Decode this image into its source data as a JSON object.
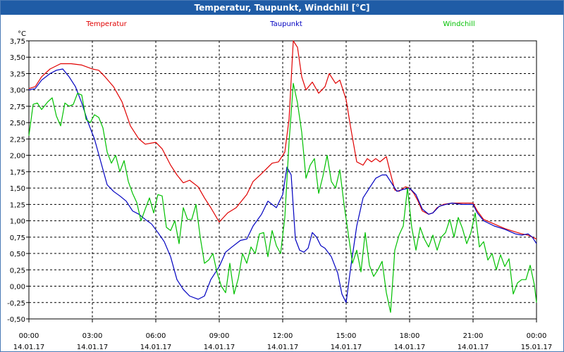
{
  "window": {
    "title": "Temperatur, Taupunkt, Windchill [°C]"
  },
  "chart_data": {
    "type": "line",
    "title": "Temperatur, Taupunkt, Windchill [°C]",
    "ylabel": "°C",
    "ylim": [
      -0.5,
      3.75
    ],
    "xlim": [
      0,
      24
    ],
    "grid": true,
    "legend_position": "top",
    "y_ticks": [
      "3,75",
      "3,50",
      "3,25",
      "3,00",
      "2,75",
      "2,50",
      "2,25",
      "2,00",
      "1,75",
      "1,50",
      "1,25",
      "1,00",
      "0,75",
      "0,50",
      "0,25",
      "0,00",
      "-0,25",
      "-0,50"
    ],
    "x_ticks": [
      {
        "time": "00:00",
        "date": "14.01.17"
      },
      {
        "time": "03:00",
        "date": "14.01.17"
      },
      {
        "time": "06:00",
        "date": "14.01.17"
      },
      {
        "time": "09:00",
        "date": "14.01.17"
      },
      {
        "time": "12:00",
        "date": "14.01.17"
      },
      {
        "time": "15:00",
        "date": "14.01.17"
      },
      {
        "time": "18:00",
        "date": "14.01.17"
      },
      {
        "time": "21:00",
        "date": "14.01.17"
      },
      {
        "time": "00:00",
        "date": "15.01.17"
      }
    ],
    "series": [
      {
        "name": "Temperatur",
        "color": "#e00000",
        "points": [
          [
            0,
            3.02
          ],
          [
            0.3,
            3.05
          ],
          [
            0.6,
            3.2
          ],
          [
            1.0,
            3.32
          ],
          [
            1.5,
            3.4
          ],
          [
            2.0,
            3.4
          ],
          [
            2.5,
            3.38
          ],
          [
            3.0,
            3.32
          ],
          [
            3.3,
            3.3
          ],
          [
            3.6,
            3.2
          ],
          [
            4.0,
            3.05
          ],
          [
            4.4,
            2.82
          ],
          [
            4.8,
            2.45
          ],
          [
            5.2,
            2.25
          ],
          [
            5.5,
            2.17
          ],
          [
            6.0,
            2.2
          ],
          [
            6.3,
            2.1
          ],
          [
            6.7,
            1.85
          ],
          [
            7.0,
            1.7
          ],
          [
            7.3,
            1.58
          ],
          [
            7.6,
            1.62
          ],
          [
            8.0,
            1.52
          ],
          [
            8.3,
            1.35
          ],
          [
            8.6,
            1.2
          ],
          [
            9.0,
            0.98
          ],
          [
            9.4,
            1.12
          ],
          [
            9.8,
            1.2
          ],
          [
            10.3,
            1.4
          ],
          [
            10.6,
            1.6
          ],
          [
            11.0,
            1.72
          ],
          [
            11.5,
            1.88
          ],
          [
            11.8,
            1.9
          ],
          [
            12.1,
            2.05
          ],
          [
            12.3,
            2.55
          ],
          [
            12.5,
            3.75
          ],
          [
            12.7,
            3.65
          ],
          [
            12.9,
            3.2
          ],
          [
            13.1,
            3.0
          ],
          [
            13.4,
            3.12
          ],
          [
            13.7,
            2.95
          ],
          [
            14.0,
            3.05
          ],
          [
            14.2,
            3.25
          ],
          [
            14.5,
            3.1
          ],
          [
            14.7,
            3.15
          ],
          [
            15.0,
            2.85
          ],
          [
            15.2,
            2.45
          ],
          [
            15.5,
            1.9
          ],
          [
            15.8,
            1.85
          ],
          [
            16.0,
            1.95
          ],
          [
            16.2,
            1.9
          ],
          [
            16.4,
            1.95
          ],
          [
            16.6,
            1.9
          ],
          [
            16.9,
            1.98
          ],
          [
            17.1,
            1.72
          ],
          [
            17.3,
            1.47
          ],
          [
            17.5,
            1.45
          ],
          [
            17.8,
            1.52
          ],
          [
            18.0,
            1.5
          ],
          [
            18.2,
            1.42
          ],
          [
            18.4,
            1.3
          ],
          [
            18.6,
            1.15
          ],
          [
            18.9,
            1.1
          ],
          [
            19.1,
            1.12
          ],
          [
            19.3,
            1.2
          ],
          [
            19.6,
            1.25
          ],
          [
            20.0,
            1.27
          ],
          [
            20.5,
            1.27
          ],
          [
            21.0,
            1.27
          ],
          [
            21.2,
            1.15
          ],
          [
            21.5,
            1.02
          ],
          [
            22.0,
            0.95
          ],
          [
            22.5,
            0.88
          ],
          [
            23.0,
            0.83
          ],
          [
            23.3,
            0.8
          ],
          [
            23.6,
            0.78
          ],
          [
            23.8,
            0.75
          ],
          [
            24.0,
            0.72
          ]
        ]
      },
      {
        "name": "Taupunkt",
        "color": "#0000c0",
        "points": [
          [
            0,
            3.0
          ],
          [
            0.3,
            3.02
          ],
          [
            0.6,
            3.15
          ],
          [
            1.0,
            3.25
          ],
          [
            1.3,
            3.3
          ],
          [
            1.6,
            3.32
          ],
          [
            1.9,
            3.2
          ],
          [
            2.2,
            3.05
          ],
          [
            2.5,
            2.8
          ],
          [
            2.8,
            2.5
          ],
          [
            3.1,
            2.25
          ],
          [
            3.4,
            1.9
          ],
          [
            3.7,
            1.55
          ],
          [
            4.0,
            1.45
          ],
          [
            4.3,
            1.38
          ],
          [
            4.6,
            1.3
          ],
          [
            4.9,
            1.15
          ],
          [
            5.2,
            1.1
          ],
          [
            5.5,
            1.02
          ],
          [
            5.8,
            0.95
          ],
          [
            6.1,
            0.82
          ],
          [
            6.4,
            0.68
          ],
          [
            6.7,
            0.45
          ],
          [
            7.0,
            0.1
          ],
          [
            7.3,
            -0.05
          ],
          [
            7.6,
            -0.15
          ],
          [
            8.0,
            -0.2
          ],
          [
            8.3,
            -0.15
          ],
          [
            8.6,
            0.1
          ],
          [
            9.0,
            0.3
          ],
          [
            9.3,
            0.52
          ],
          [
            9.6,
            0.6
          ],
          [
            10.0,
            0.7
          ],
          [
            10.3,
            0.72
          ],
          [
            10.6,
            0.92
          ],
          [
            11.0,
            1.1
          ],
          [
            11.3,
            1.3
          ],
          [
            11.7,
            1.2
          ],
          [
            12.0,
            1.4
          ],
          [
            12.2,
            1.82
          ],
          [
            12.4,
            1.7
          ],
          [
            12.6,
            0.72
          ],
          [
            12.8,
            0.55
          ],
          [
            13.0,
            0.52
          ],
          [
            13.2,
            0.58
          ],
          [
            13.4,
            0.82
          ],
          [
            13.6,
            0.75
          ],
          [
            13.8,
            0.62
          ],
          [
            14.0,
            0.58
          ],
          [
            14.3,
            0.45
          ],
          [
            14.6,
            0.2
          ],
          [
            14.8,
            -0.12
          ],
          [
            15.0,
            -0.25
          ],
          [
            15.2,
            0.25
          ],
          [
            15.5,
            0.92
          ],
          [
            15.8,
            1.35
          ],
          [
            16.1,
            1.5
          ],
          [
            16.4,
            1.65
          ],
          [
            16.7,
            1.7
          ],
          [
            16.9,
            1.7
          ],
          [
            17.2,
            1.55
          ],
          [
            17.4,
            1.45
          ],
          [
            17.7,
            1.48
          ],
          [
            18.0,
            1.5
          ],
          [
            18.3,
            1.4
          ],
          [
            18.6,
            1.18
          ],
          [
            18.9,
            1.1
          ],
          [
            19.1,
            1.12
          ],
          [
            19.4,
            1.22
          ],
          [
            19.7,
            1.25
          ],
          [
            20.0,
            1.27
          ],
          [
            20.5,
            1.25
          ],
          [
            21.0,
            1.25
          ],
          [
            21.2,
            1.12
          ],
          [
            21.5,
            1.0
          ],
          [
            22.0,
            0.92
          ],
          [
            22.5,
            0.87
          ],
          [
            23.0,
            0.8
          ],
          [
            23.3,
            0.78
          ],
          [
            23.6,
            0.8
          ],
          [
            23.8,
            0.75
          ],
          [
            24.0,
            0.65
          ]
        ]
      },
      {
        "name": "Windchill",
        "color": "#00c000",
        "points": [
          [
            0,
            2.3
          ],
          [
            0.2,
            2.78
          ],
          [
            0.4,
            2.8
          ],
          [
            0.6,
            2.7
          ],
          [
            0.9,
            2.82
          ],
          [
            1.1,
            2.88
          ],
          [
            1.3,
            2.6
          ],
          [
            1.5,
            2.45
          ],
          [
            1.7,
            2.8
          ],
          [
            1.9,
            2.75
          ],
          [
            2.1,
            2.78
          ],
          [
            2.3,
            2.95
          ],
          [
            2.5,
            2.92
          ],
          [
            2.7,
            2.55
          ],
          [
            2.9,
            2.5
          ],
          [
            3.1,
            2.62
          ],
          [
            3.3,
            2.58
          ],
          [
            3.5,
            2.42
          ],
          [
            3.7,
            2.05
          ],
          [
            3.9,
            1.88
          ],
          [
            4.1,
            2.0
          ],
          [
            4.3,
            1.75
          ],
          [
            4.5,
            1.92
          ],
          [
            4.7,
            1.6
          ],
          [
            4.9,
            1.42
          ],
          [
            5.1,
            1.28
          ],
          [
            5.3,
            1.0
          ],
          [
            5.5,
            1.18
          ],
          [
            5.7,
            1.35
          ],
          [
            5.9,
            1.12
          ],
          [
            6.1,
            1.4
          ],
          [
            6.3,
            1.38
          ],
          [
            6.5,
            0.9
          ],
          [
            6.7,
            0.85
          ],
          [
            6.9,
            1.0
          ],
          [
            7.1,
            0.65
          ],
          [
            7.3,
            1.2
          ],
          [
            7.5,
            1.02
          ],
          [
            7.7,
            1.02
          ],
          [
            7.9,
            1.25
          ],
          [
            8.1,
            0.75
          ],
          [
            8.3,
            0.35
          ],
          [
            8.5,
            0.4
          ],
          [
            8.7,
            0.5
          ],
          [
            8.9,
            0.2
          ],
          [
            9.1,
            0.0
          ],
          [
            9.3,
            -0.1
          ],
          [
            9.5,
            0.35
          ],
          [
            9.7,
            -0.12
          ],
          [
            9.9,
            0.12
          ],
          [
            10.1,
            0.5
          ],
          [
            10.3,
            0.35
          ],
          [
            10.5,
            0.6
          ],
          [
            10.7,
            0.5
          ],
          [
            10.9,
            0.8
          ],
          [
            11.1,
            0.82
          ],
          [
            11.3,
            0.45
          ],
          [
            11.5,
            0.85
          ],
          [
            11.7,
            0.62
          ],
          [
            11.9,
            0.5
          ],
          [
            12.1,
            1.05
          ],
          [
            12.3,
            2.2
          ],
          [
            12.5,
            3.1
          ],
          [
            12.7,
            2.8
          ],
          [
            12.9,
            2.35
          ],
          [
            13.1,
            1.65
          ],
          [
            13.3,
            1.85
          ],
          [
            13.5,
            1.95
          ],
          [
            13.7,
            1.42
          ],
          [
            13.9,
            1.68
          ],
          [
            14.1,
            2.0
          ],
          [
            14.3,
            1.6
          ],
          [
            14.5,
            1.5
          ],
          [
            14.7,
            1.78
          ],
          [
            14.9,
            1.25
          ],
          [
            15.1,
            0.8
          ],
          [
            15.3,
            0.35
          ],
          [
            15.5,
            0.55
          ],
          [
            15.7,
            0.22
          ],
          [
            15.9,
            0.82
          ],
          [
            16.1,
            0.32
          ],
          [
            16.3,
            0.15
          ],
          [
            16.5,
            0.25
          ],
          [
            16.7,
            0.38
          ],
          [
            16.9,
            -0.1
          ],
          [
            17.1,
            -0.4
          ],
          [
            17.3,
            0.55
          ],
          [
            17.5,
            0.78
          ],
          [
            17.7,
            0.92
          ],
          [
            17.9,
            1.5
          ],
          [
            18.1,
            0.9
          ],
          [
            18.3,
            0.55
          ],
          [
            18.5,
            0.9
          ],
          [
            18.7,
            0.72
          ],
          [
            18.9,
            0.6
          ],
          [
            19.1,
            0.78
          ],
          [
            19.3,
            0.55
          ],
          [
            19.5,
            0.75
          ],
          [
            19.7,
            0.82
          ],
          [
            19.9,
            1.02
          ],
          [
            20.1,
            0.75
          ],
          [
            20.3,
            1.05
          ],
          [
            20.5,
            0.88
          ],
          [
            20.7,
            0.65
          ],
          [
            20.9,
            0.82
          ],
          [
            21.1,
            1.12
          ],
          [
            21.3,
            0.6
          ],
          [
            21.5,
            0.68
          ],
          [
            21.7,
            0.4
          ],
          [
            21.9,
            0.5
          ],
          [
            22.1,
            0.25
          ],
          [
            22.3,
            0.48
          ],
          [
            22.5,
            0.3
          ],
          [
            22.7,
            0.42
          ],
          [
            22.9,
            -0.12
          ],
          [
            23.1,
            0.05
          ],
          [
            23.3,
            0.1
          ],
          [
            23.5,
            0.1
          ],
          [
            23.7,
            0.32
          ],
          [
            23.9,
            0.02
          ],
          [
            24.0,
            -0.25
          ]
        ]
      }
    ]
  }
}
